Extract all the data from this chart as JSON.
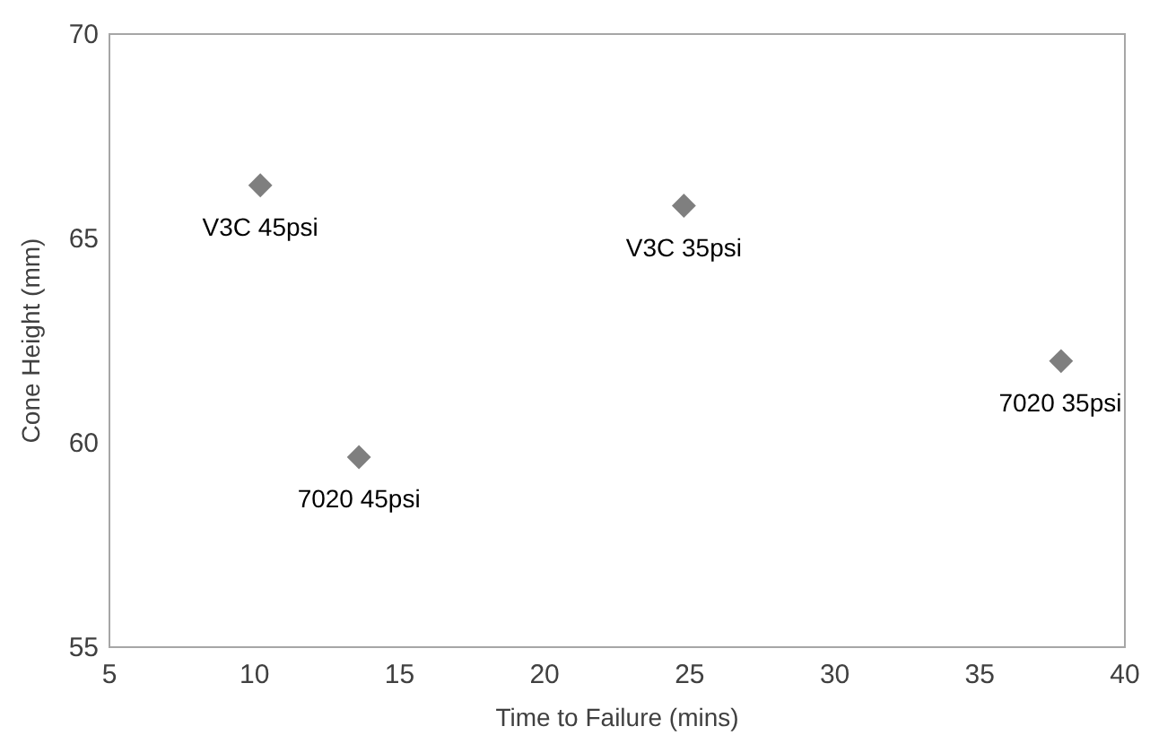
{
  "chart_data": {
    "type": "scatter",
    "xlabel": "Time to Failure (mins)",
    "ylabel": "Cone Height (mm)",
    "x": [
      10.2,
      13.6,
      24.8,
      37.8
    ],
    "series": [
      {
        "color": "#7f7f7f",
        "values": [
          66.3,
          59.65,
          65.8,
          62.0
        ]
      }
    ],
    "xlim": [
      5,
      40
    ],
    "xticks": [
      5,
      10,
      15,
      20,
      25,
      30,
      35,
      40
    ],
    "ylim": [
      55,
      70
    ],
    "yticks": [
      55,
      60,
      65,
      70
    ],
    "marker": "diamond",
    "grid": false,
    "annotations": [
      {
        "text": "V3C 45psi",
        "x": 10.2,
        "y": 66.3
      },
      {
        "text": "7020 45psi",
        "x": 13.6,
        "y": 59.65
      },
      {
        "text": "V3C 35psi",
        "x": 24.8,
        "y": 65.8
      },
      {
        "text": "7020 35psi",
        "x": 37.8,
        "y": 62.0
      }
    ]
  }
}
